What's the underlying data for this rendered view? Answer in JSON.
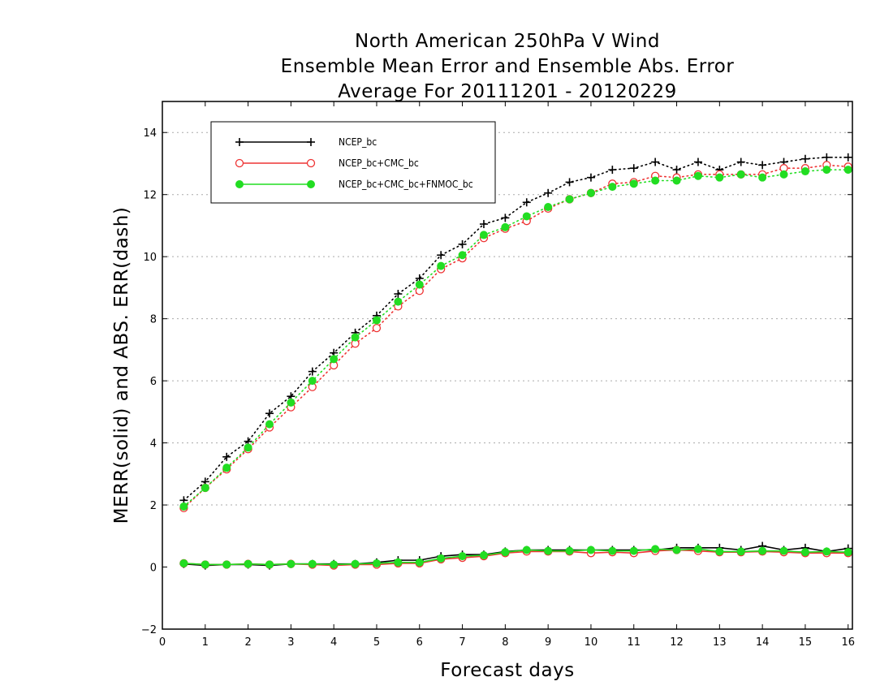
{
  "chart_data": {
    "type": "line",
    "title_lines": [
      "North American 250hPa V Wind",
      "Ensemble Mean Error and Ensemble Abs. Error",
      "Average For 20111201 - 20120229"
    ],
    "xlabel": "Forecast days",
    "ylabel": "MERR(solid) and ABS. ERR(dash)",
    "xlim": [
      0,
      16.1
    ],
    "ylim": [
      -2,
      15
    ],
    "xticks": [
      0,
      1,
      2,
      3,
      4,
      5,
      6,
      7,
      8,
      9,
      10,
      11,
      12,
      13,
      14,
      15,
      16
    ],
    "yticks": [
      -2,
      0,
      2,
      4,
      6,
      8,
      10,
      12,
      14
    ],
    "ygrid": [
      2,
      4,
      6,
      8,
      10,
      12,
      14
    ],
    "grid": "horizontal dotted",
    "legend_position": "top-left",
    "x": [
      0.5,
      1.0,
      1.5,
      2.0,
      2.5,
      3.0,
      3.5,
      4.0,
      4.5,
      5.0,
      5.5,
      6.0,
      6.5,
      7.0,
      7.5,
      8.0,
      8.5,
      9.0,
      9.5,
      10.0,
      10.5,
      11.0,
      11.5,
      12.0,
      12.5,
      13.0,
      13.5,
      14.0,
      14.5,
      15.0,
      15.5,
      16.0
    ],
    "series": [
      {
        "name": "NCEP_bc",
        "color": "#000000",
        "marker": "plus",
        "merr": [
          0.1,
          0.05,
          0.08,
          0.08,
          0.05,
          0.1,
          0.1,
          0.1,
          0.1,
          0.15,
          0.22,
          0.22,
          0.35,
          0.4,
          0.4,
          0.5,
          0.55,
          0.55,
          0.55,
          0.55,
          0.55,
          0.55,
          0.55,
          0.62,
          0.62,
          0.62,
          0.55,
          0.68,
          0.55,
          0.62,
          0.5,
          0.6
        ],
        "abs_err": [
          2.15,
          2.75,
          3.55,
          4.05,
          4.95,
          5.5,
          6.3,
          6.9,
          7.55,
          8.1,
          8.8,
          9.3,
          10.05,
          10.4,
          11.05,
          11.25,
          11.75,
          12.05,
          12.4,
          12.55,
          12.8,
          12.85,
          13.05,
          12.8,
          13.05,
          12.8,
          13.05,
          12.95,
          13.05,
          13.15,
          13.2,
          13.2
        ]
      },
      {
        "name": "NCEP_bc+CMC_bc",
        "color": "#ee3333",
        "marker": "open-circle",
        "merr": [
          0.12,
          0.08,
          0.08,
          0.1,
          0.08,
          0.1,
          0.08,
          0.05,
          0.08,
          0.08,
          0.12,
          0.12,
          0.25,
          0.3,
          0.35,
          0.45,
          0.5,
          0.5,
          0.5,
          0.45,
          0.48,
          0.45,
          0.52,
          0.55,
          0.52,
          0.48,
          0.48,
          0.5,
          0.48,
          0.45,
          0.45,
          0.45
        ],
        "abs_err": [
          1.9,
          2.55,
          3.15,
          3.8,
          4.5,
          5.15,
          5.8,
          6.5,
          7.2,
          7.7,
          8.4,
          8.9,
          9.6,
          9.95,
          10.6,
          10.9,
          11.15,
          11.55,
          11.85,
          12.05,
          12.35,
          12.4,
          12.6,
          12.55,
          12.65,
          12.65,
          12.65,
          12.65,
          12.85,
          12.85,
          12.95,
          12.9
        ]
      },
      {
        "name": "NCEP_bc+CMC_bc+FNMOC_bc",
        "color": "#22dd22",
        "marker": "filled-circle",
        "merr": [
          0.12,
          0.08,
          0.08,
          0.1,
          0.08,
          0.1,
          0.1,
          0.08,
          0.1,
          0.12,
          0.15,
          0.15,
          0.28,
          0.35,
          0.38,
          0.48,
          0.55,
          0.52,
          0.52,
          0.55,
          0.52,
          0.52,
          0.58,
          0.55,
          0.58,
          0.5,
          0.5,
          0.52,
          0.52,
          0.48,
          0.5,
          0.48
        ],
        "abs_err": [
          1.95,
          2.55,
          3.2,
          3.85,
          4.6,
          5.3,
          6.0,
          6.7,
          7.4,
          7.95,
          8.55,
          9.1,
          9.7,
          10.05,
          10.7,
          10.95,
          11.3,
          11.6,
          11.85,
          12.05,
          12.25,
          12.35,
          12.45,
          12.45,
          12.6,
          12.55,
          12.65,
          12.55,
          12.65,
          12.75,
          12.8,
          12.8
        ]
      }
    ]
  }
}
